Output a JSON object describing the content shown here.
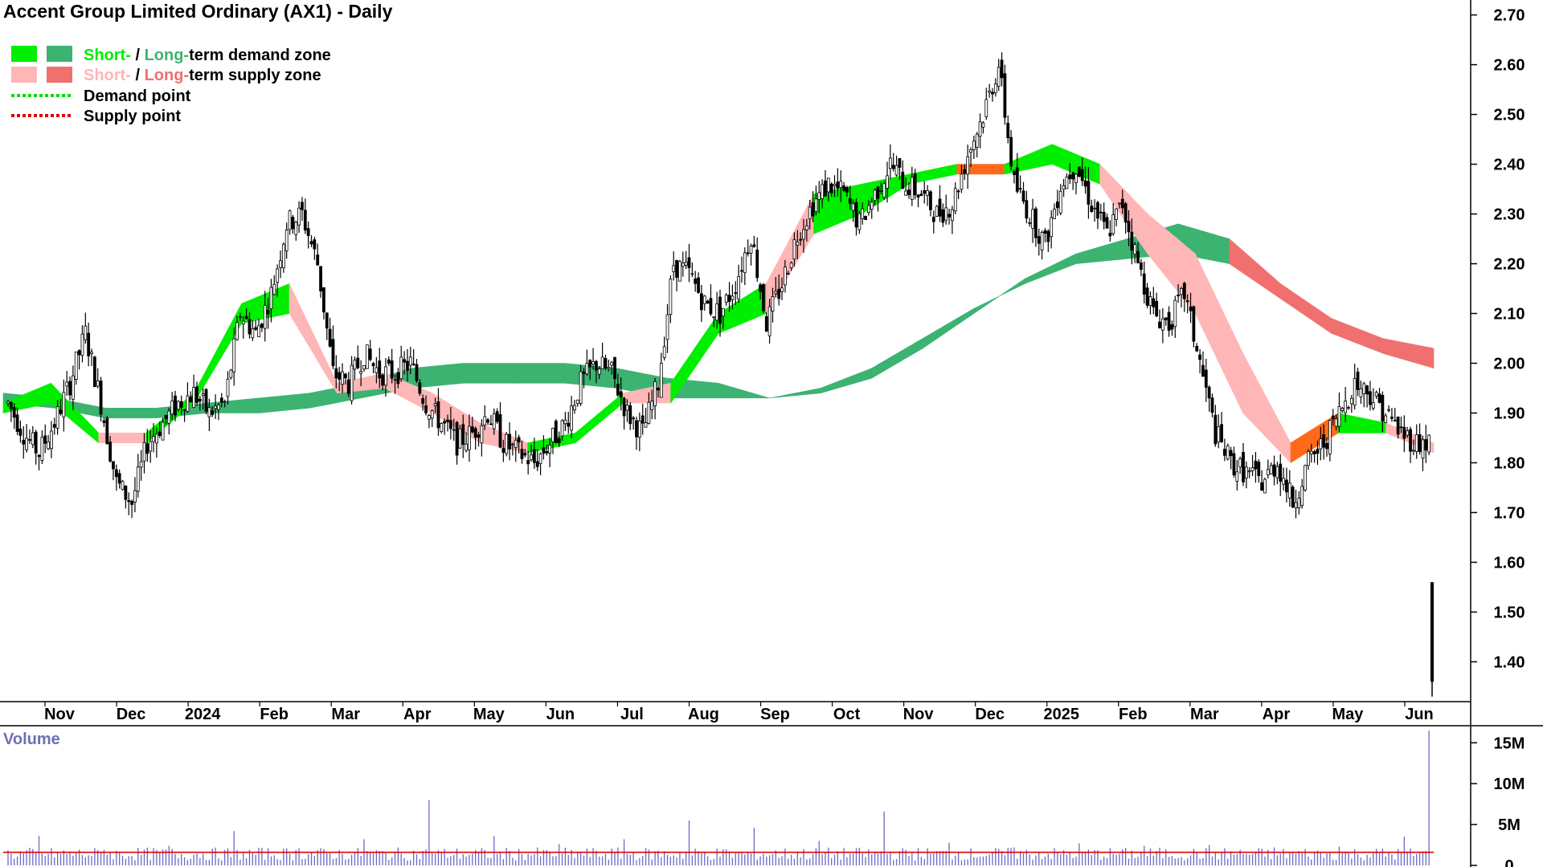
{
  "chart_data": {
    "type": "candlestick",
    "title": "Accent Group Limited Ordinary (AX1) - Daily",
    "legend": {
      "demand_zone": {
        "short_label": "Short-",
        "sep": " / ",
        "long_label": "Long-",
        "rest": "term demand zone"
      },
      "supply_zone": {
        "short_label": "Short-",
        "sep": " / ",
        "long_label": "Long-",
        "rest": "term supply zone"
      },
      "demand_point": "Demand point",
      "supply_point": "Supply point"
    },
    "colors": {
      "short_demand": "#00ee00",
      "long_demand": "#3cb371",
      "short_supply": "#ffb6b6",
      "long_supply": "#f07070",
      "orange_overlap": "#ff6a1a",
      "demand_point": "#00dd00",
      "supply_point": "#dd0000",
      "volume_bar": "#6a6ac8",
      "volume_avg": "#dd0000",
      "candle": "#000000"
    },
    "x_labels": [
      "Nov",
      "Dec",
      "2024",
      "Feb",
      "Mar",
      "Apr",
      "May",
      "Jun",
      "Jul",
      "Aug",
      "Sep",
      "Oct",
      "Nov",
      "Dec",
      "2025",
      "Feb",
      "Mar",
      "Apr",
      "May",
      "Jun"
    ],
    "y_ticks": [
      "2.70",
      "2.60",
      "2.50",
      "2.40",
      "2.30",
      "2.20",
      "2.10",
      "2.00",
      "1.90",
      "1.80",
      "1.70",
      "1.60",
      "1.50",
      "1.40"
    ],
    "ylim": [
      1.32,
      2.73
    ],
    "close_weekly": [
      1.92,
      1.86,
      1.82,
      1.88,
      1.96,
      2.06,
      1.92,
      1.76,
      1.72,
      1.84,
      1.88,
      1.92,
      1.94,
      1.9,
      1.92,
      2.1,
      2.06,
      2.14,
      2.28,
      2.3,
      2.2,
      1.98,
      1.96,
      2.02,
      1.98,
      1.98,
      2.0,
      1.92,
      1.88,
      1.84,
      1.86,
      1.9,
      1.84,
      1.82,
      1.8,
      1.84,
      1.88,
      1.96,
      2.0,
      1.98,
      1.9,
      1.86,
      1.96,
      2.2,
      2.18,
      2.12,
      2.1,
      2.16,
      2.26,
      2.08,
      2.16,
      2.26,
      2.32,
      2.36,
      2.34,
      2.28,
      2.34,
      2.4,
      2.36,
      2.34,
      2.3,
      2.32,
      2.42,
      2.5,
      2.6,
      2.36,
      2.3,
      2.24,
      2.36,
      2.4,
      2.32,
      2.26,
      2.32,
      2.2,
      2.1,
      2.08,
      2.14,
      2.0,
      1.86,
      1.8,
      1.78,
      1.76,
      1.8,
      1.72,
      1.8,
      1.84,
      1.9,
      1.96,
      1.94,
      1.9,
      1.86,
      1.84
    ],
    "last_candle": {
      "open": 1.56,
      "close": 1.36,
      "high": 1.56,
      "low": 1.33
    },
    "long_zone": {
      "top": [
        1.94,
        1.93,
        1.91,
        1.91,
        1.92,
        1.93,
        1.94,
        1.96,
        1.99,
        2.0,
        2.0,
        2.0,
        1.99,
        1.97,
        1.96,
        1.93,
        1.94,
        1.97,
        2.03,
        2.1,
        2.17,
        2.22,
        2.25,
        2.28,
        2.25,
        2.16,
        2.09,
        2.05,
        2.03
      ],
      "bottom": [
        1.92,
        1.91,
        1.89,
        1.89,
        1.9,
        1.9,
        1.91,
        1.93,
        1.95,
        1.96,
        1.96,
        1.96,
        1.95,
        1.93,
        1.93,
        1.93,
        1.95,
        1.99,
        2.05,
        2.11,
        2.16,
        2.2,
        2.21,
        2.22,
        2.2,
        2.13,
        2.06,
        2.02,
        1.99
      ],
      "state": [
        "D",
        "D",
        "D",
        "D",
        "D",
        "D",
        "D",
        "D",
        "D",
        "D",
        "D",
        "D",
        "D",
        "D",
        "D",
        "D",
        "D",
        "D",
        "D",
        "D",
        "D",
        "D",
        "D",
        "D",
        "S",
        "S",
        "S",
        "S",
        "S"
      ]
    },
    "short_zone": {
      "top": [
        1.92,
        1.96,
        1.86,
        1.86,
        1.94,
        2.12,
        2.16,
        1.96,
        1.98,
        1.94,
        1.88,
        1.84,
        1.86,
        1.94,
        1.96,
        2.1,
        2.16,
        2.34,
        2.36,
        2.38,
        2.4,
        2.4,
        2.44,
        2.4,
        2.3,
        2.22,
        2.02,
        1.84,
        1.9,
        1.88,
        1.84
      ],
      "bottom": [
        1.9,
        1.92,
        1.84,
        1.84,
        1.92,
        2.08,
        2.1,
        1.94,
        1.95,
        1.9,
        1.84,
        1.82,
        1.84,
        1.92,
        1.92,
        2.06,
        2.1,
        2.26,
        2.3,
        2.36,
        2.38,
        2.38,
        2.4,
        2.36,
        2.22,
        2.1,
        1.9,
        1.8,
        1.86,
        1.86,
        1.82
      ],
      "state": [
        "D",
        "D",
        "S",
        "D",
        "D",
        "D",
        "S",
        "S",
        "S",
        "S",
        "S",
        "D",
        "D",
        "S",
        "D",
        "D",
        "S",
        "D",
        "D",
        "D",
        "O",
        "D",
        "D",
        "S",
        "S",
        "S",
        "S",
        "O",
        "D",
        "S",
        "S"
      ]
    },
    "volume": {
      "title": "Volume",
      "y_ticks": [
        "15M",
        "10M",
        "5M",
        "0"
      ],
      "ylim": [
        0,
        16.5
      ],
      "avg_level": 1.6,
      "spikes_millions": [
        3.6,
        1.9,
        2.4,
        4.2,
        2.1,
        3.2,
        8.0,
        3.6,
        2.6,
        3.2,
        5.5,
        4.6,
        3.0,
        6.6,
        2.8,
        2.2,
        2.7,
        2.4,
        2.5,
        2.2,
        2.3,
        3.5,
        16.5
      ]
    }
  }
}
